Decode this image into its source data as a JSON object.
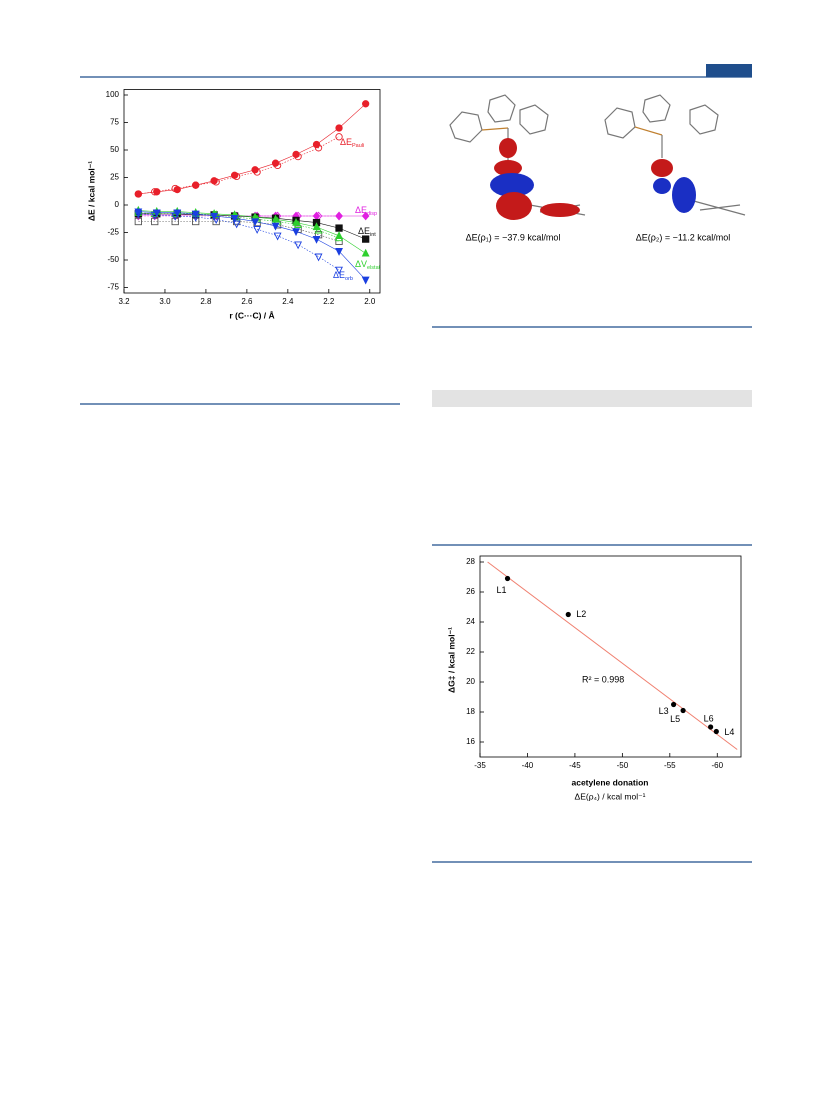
{
  "chart_data": [
    {
      "type": "line",
      "xlabel": "r (C···C) / Å",
      "ylabel": "ΔE / kcal mol⁻¹",
      "xlim": [
        3.2,
        1.95
      ],
      "ylim": [
        -80,
        105
      ],
      "xticks": [
        3.2,
        {
          "value": 3,
          "label": "3.0"
        },
        2.8,
        2.6,
        2.4,
        2.2,
        {
          "value": 2,
          "label": "2.0"
        }
      ],
      "yticks": [
        -75,
        -50,
        -25,
        0,
        25,
        50,
        75,
        100
      ],
      "series": [
        {
          "label": "ΔE",
          "label_sub": "Pauli",
          "color": "#e8202a",
          "marker": "circle",
          "filled": true,
          "x": [
            3.13,
            3.04,
            2.94,
            2.85,
            2.76,
            2.66,
            2.56,
            2.46,
            2.36,
            2.26,
            2.15,
            2.02
          ],
          "values": [
            10,
            12,
            14,
            18,
            22,
            27,
            32,
            38,
            46,
            55,
            70,
            92
          ]
        },
        {
          "color": "#e8202a",
          "marker": "circle",
          "filled": false,
          "x": [
            3.13,
            3.05,
            2.95,
            2.85,
            2.75,
            2.65,
            2.55,
            2.45,
            2.35,
            2.25,
            2.15
          ],
          "values": [
            10,
            12,
            15,
            18,
            21,
            26,
            30,
            36,
            44,
            52,
            62
          ]
        },
        {
          "label": "ΔE",
          "label_sub": "disp",
          "color": "#e020e0",
          "marker": "diamond",
          "filled": true,
          "x": [
            3.13,
            3.04,
            2.94,
            2.85,
            2.76,
            2.66,
            2.56,
            2.46,
            2.36,
            2.26,
            2.15,
            2.02
          ],
          "values": [
            -9,
            -9,
            -9,
            -9,
            -9,
            -10,
            -10,
            -10,
            -10,
            -10,
            -10,
            -10
          ]
        },
        {
          "color": "#e020e0",
          "marker": "diamond",
          "filled": false,
          "x": [
            3.13,
            3.05,
            2.95,
            2.85,
            2.75,
            2.65,
            2.55,
            2.45,
            2.35,
            2.25,
            2.15
          ],
          "values": [
            -10,
            -10,
            -10,
            -10,
            -10,
            -10,
            -10,
            -10,
            -10,
            -10,
            -10
          ]
        },
        {
          "label": "ΔE",
          "label_sub": "int",
          "color": "#111111",
          "marker": "square",
          "filled": true,
          "x": [
            3.13,
            3.04,
            2.94,
            2.85,
            2.76,
            2.66,
            2.56,
            2.46,
            2.36,
            2.26,
            2.15,
            2.02
          ],
          "values": [
            -8,
            -8,
            -8,
            -9,
            -9,
            -10,
            -11,
            -12,
            -14,
            -16,
            -21,
            -31
          ]
        },
        {
          "color": "#555555",
          "marker": "square",
          "filled": false,
          "x": [
            3.13,
            3.05,
            2.95,
            2.85,
            2.75,
            2.65,
            2.55,
            2.45,
            2.35,
            2.25,
            2.15
          ],
          "values": [
            -15,
            -15,
            -15,
            -15,
            -15,
            -15,
            -16,
            -18,
            -22,
            -27,
            -33
          ]
        },
        {
          "label": "ΔV",
          "label_sub": "elstat",
          "color": "#2ed02e",
          "marker": "triangle",
          "filled": true,
          "x": [
            3.13,
            3.04,
            2.94,
            2.85,
            2.76,
            2.66,
            2.56,
            2.46,
            2.36,
            2.26,
            2.15,
            2.02
          ],
          "values": [
            -5,
            -6,
            -6,
            -7,
            -8,
            -9,
            -11,
            -13,
            -16,
            -20,
            -28,
            -44
          ]
        },
        {
          "color": "#2ed02e",
          "marker": "triangle",
          "filled": false,
          "x": [
            3.13,
            3.05,
            2.95,
            2.85,
            2.75,
            2.65,
            2.55,
            2.45,
            2.35,
            2.25,
            2.15
          ],
          "values": [
            -7,
            -8,
            -8,
            -8,
            -9,
            -11,
            -13,
            -15,
            -18,
            -23,
            -30
          ]
        },
        {
          "label": "ΔE",
          "label_sub": "orb",
          "color": "#1a3fe0",
          "marker": "triangle-down",
          "filled": true,
          "x": [
            3.13,
            3.04,
            2.94,
            2.85,
            2.76,
            2.66,
            2.56,
            2.46,
            2.36,
            2.26,
            2.15,
            2.02
          ],
          "values": [
            -6,
            -7,
            -7,
            -8,
            -10,
            -12,
            -15,
            -19,
            -24,
            -31,
            -42,
            -68
          ]
        },
        {
          "color": "#1a3fe0",
          "marker": "triangle-down",
          "filled": false,
          "x": [
            3.13,
            3.05,
            2.95,
            2.85,
            2.75,
            2.65,
            2.55,
            2.45,
            2.35,
            2.25,
            2.15
          ],
          "values": [
            -8,
            -9,
            -10,
            -11,
            -13,
            -17,
            -22,
            -28,
            -36,
            -47,
            -59
          ]
        }
      ]
    },
    {
      "type": "scatter",
      "xlabel": "acetylene donation",
      "xlabel2": "ΔE(ρ₄) / kcal mol⁻¹",
      "ylabel": "ΔG‡ / kcal mol⁻¹",
      "xlim": [
        -35,
        -62.5
      ],
      "ylim": [
        15,
        28.4
      ],
      "xticks": [
        -35,
        -40,
        -45,
        -50,
        -55,
        -60
      ],
      "yticks": [
        16,
        18,
        20,
        22,
        24,
        26,
        28
      ],
      "point_labels": [
        "L1",
        "L2",
        "L3",
        "L5",
        "L6",
        "L4"
      ],
      "x": [
        -37.9,
        -44.3,
        -55.4,
        -56.4,
        -59.3,
        -59.9
      ],
      "values": [
        26.9,
        24.5,
        18.5,
        18.1,
        17.0,
        16.7
      ],
      "color": "#000000",
      "trendline": {
        "x": [
          -35.8,
          -62.1
        ],
        "values": [
          28,
          15.5
        ],
        "color": "#f08070"
      },
      "annotation": "R² = 0.998"
    }
  ],
  "figure": {
    "captions": [
      "ΔE(ρ₁) = −37.9 kcal/mol",
      "ΔE(ρ₂) = −11.2 kcal/mol"
    ]
  }
}
